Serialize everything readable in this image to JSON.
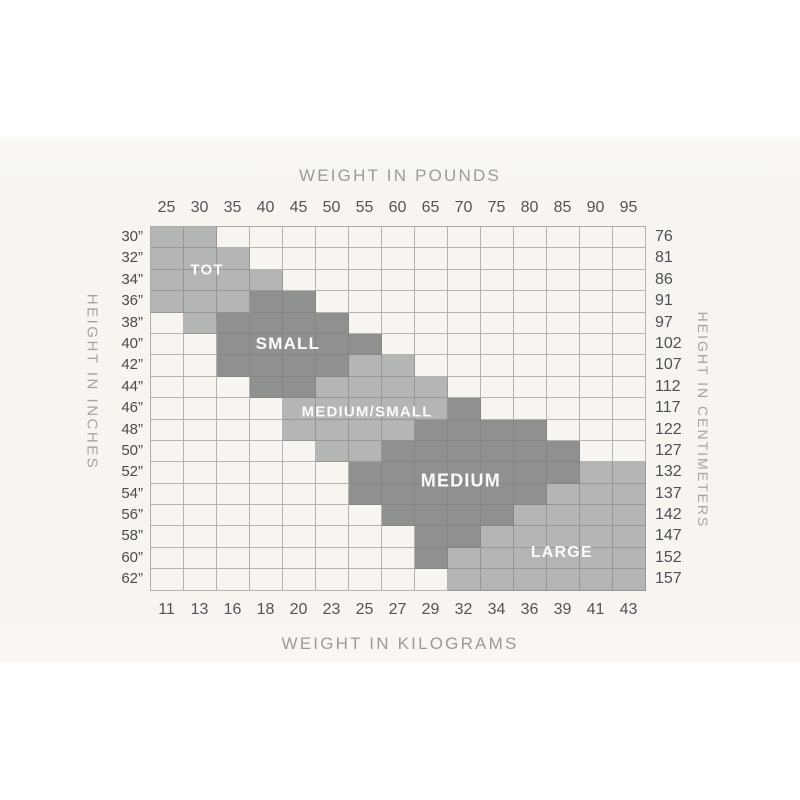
{
  "chart_data": {
    "type": "heatmap",
    "description": "Children's garment size chart: shaded size regions on a height vs weight grid",
    "x_top": {
      "label": "WEIGHT IN POUNDS",
      "ticks": [
        "25",
        "30",
        "35",
        "40",
        "45",
        "50",
        "55",
        "60",
        "65",
        "70",
        "75",
        "80",
        "85",
        "90",
        "95"
      ]
    },
    "x_bottom": {
      "label": "WEIGHT IN KILOGRAMS",
      "ticks": [
        "11",
        "13",
        "16",
        "18",
        "20",
        "23",
        "25",
        "27",
        "29",
        "32",
        "34",
        "36",
        "39",
        "41",
        "43"
      ]
    },
    "y_left": {
      "label": "HEIGHT IN INCHES",
      "ticks": [
        "30”",
        "32”",
        "34”",
        "36”",
        "38”",
        "40”",
        "42”",
        "44”",
        "46”",
        "48”",
        "50”",
        "52”",
        "54”",
        "56”",
        "58”",
        "60”",
        "62”"
      ]
    },
    "y_right": {
      "label": "HEIGHT IN CENTIMETERS",
      "ticks": [
        "76",
        "81",
        "86",
        "91",
        "97",
        "102",
        "107",
        "112",
        "117",
        "122",
        "127",
        "132",
        "137",
        "142",
        "147",
        "152",
        "157"
      ]
    },
    "grid": {
      "columns": 15,
      "rows": 17,
      "lines": "on"
    },
    "cell_shading_legend": {
      "W": "unshaded",
      "L": "light-gray region",
      "D": "dark-gray region"
    },
    "cells": [
      "LLWWWWWWWWWWWWW",
      "LLLWWWWWWWWWWWW",
      "LLLLWWWWWWWWWWW",
      "LLLDDWWWWWWWWWW",
      "WLDDDDWWWWWWWWW",
      "WWDDDDDWWWWWWWW",
      "WWDDDDLLWWWWWWW",
      "WWWDDLLLLWWWWWW",
      "WWWWLLLLLDWWWWW",
      "WWWWLLLLDDDDWWW",
      "WWWWWLLDDDDDDWW",
      "WWWWWWDDDDDDDLL",
      "WWWWWWDDDDDDLLL",
      "WWWWWWWDDDDLLLL",
      "WWWWWWWWDDLLLLL",
      "WWWWWWWWDLLLLLL",
      "WWWWWWWWWLLLLLL"
    ],
    "region_labels": [
      {
        "text": "TOT",
        "col": 1.73,
        "row": 2.06,
        "size": 15
      },
      {
        "text": "SMALL",
        "col": 4.18,
        "row": 5.5,
        "size": 17
      },
      {
        "text": "MEDIUM/SMALL",
        "col": 6.58,
        "row": 8.7,
        "size": 15
      },
      {
        "text": "MEDIUM",
        "col": 9.42,
        "row": 11.92,
        "size": 18
      },
      {
        "text": "LARGE",
        "col": 12.48,
        "row": 15.28,
        "size": 16
      }
    ],
    "colors": {
      "dark_region": "#8e9190",
      "light_region": "#b3b6b4",
      "scan_background": "#f8f5f1",
      "grid_line": "#7d7b77",
      "tick_text": "#4f5053",
      "axis_title_text": "#9c9b99",
      "region_label_text": "#fbfbf9"
    }
  }
}
